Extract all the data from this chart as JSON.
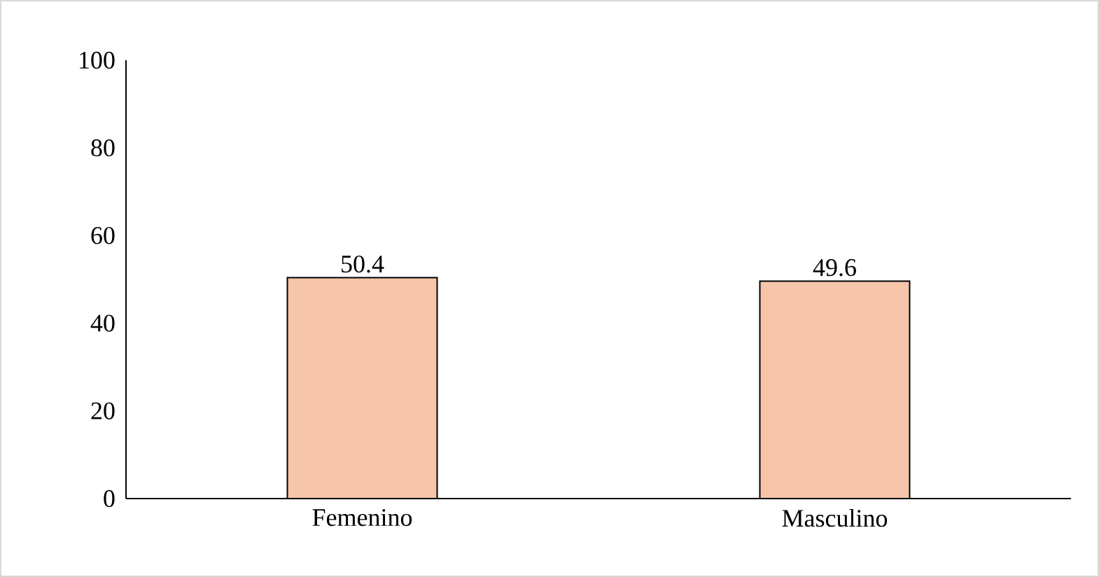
{
  "chart_data": {
    "type": "bar",
    "categories": [
      "Femenino",
      "Masculino"
    ],
    "values": [
      50.4,
      49.6
    ],
    "color": "#f6c5aa",
    "ylim": [
      0,
      100
    ],
    "yticks": [
      0,
      20,
      40,
      60,
      80,
      100
    ],
    "data_labels": true
  }
}
